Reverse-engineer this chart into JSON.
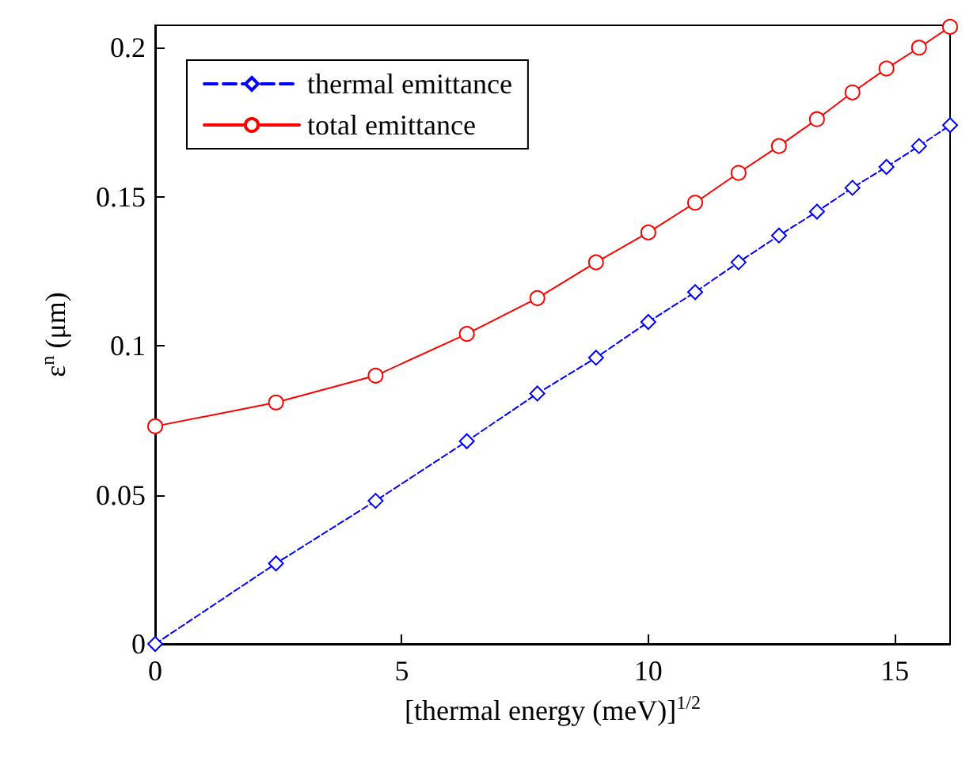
{
  "chart_data": {
    "type": "line",
    "xlabel": "[thermal energy (meV)]$^{1/2}$",
    "ylabel": "ε$^{n}$ (μm)",
    "x": [
      0,
      2.45,
      4.47,
      6.32,
      7.75,
      8.94,
      10,
      10.95,
      11.83,
      12.65,
      13.42,
      14.14,
      14.83,
      15.49,
      16.12
    ],
    "series": [
      {
        "name": "thermal emittance",
        "color": "#0000ff",
        "marker": "diamond",
        "line_style": "dashed",
        "values": [
          0,
          0.027,
          0.048,
          0.068,
          0.084,
          0.096,
          0.108,
          0.118,
          0.128,
          0.137,
          0.145,
          0.153,
          0.16,
          0.167,
          0.174
        ]
      },
      {
        "name": "total emittance",
        "color": "#ff0000",
        "marker": "circle",
        "line_style": "solid",
        "values": [
          0.073,
          0.081,
          0.09,
          0.104,
          0.116,
          0.128,
          0.138,
          0.148,
          0.158,
          0.167,
          0.176,
          0.185,
          0.193,
          0.2,
          0.207
        ]
      }
    ],
    "xlim": [
      0,
      16.12
    ],
    "xticks": [
      0,
      5,
      10,
      15
    ],
    "ylim": [
      0,
      0.2075
    ],
    "yticks": [
      0,
      0.05,
      0.1,
      0.15,
      0.2
    ],
    "legend": "top left",
    "grid": false
  }
}
